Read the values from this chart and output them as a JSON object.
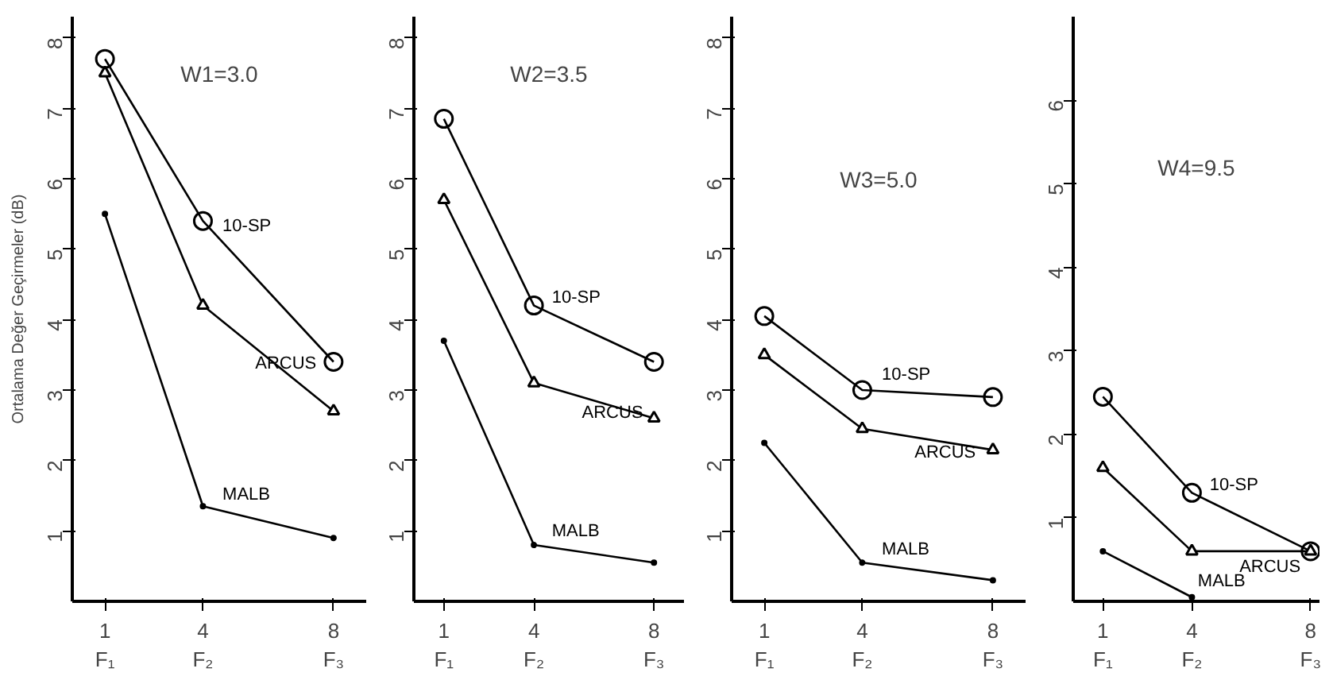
{
  "chart_data": [
    {
      "type": "line",
      "title": "W1=3.0",
      "ylabel": "Ortalama Değer Geçirmeler (dB)",
      "x": [
        1,
        4,
        8
      ],
      "xlim": [
        0,
        9
      ],
      "ylim": [
        0,
        8.3
      ],
      "yticks": [
        1,
        2,
        3,
        4,
        5,
        6,
        7,
        8
      ],
      "xticks": [
        {
          "value": 1,
          "label": "1\nF₁"
        },
        {
          "value": 4,
          "label": "4\nF₂"
        },
        {
          "value": 8,
          "label": "8\nF₃"
        }
      ],
      "grid": false,
      "series": [
        {
          "name": "10-SP",
          "color": "#000000",
          "marker": "circle",
          "values": [
            7.7,
            5.4,
            3.4
          ]
        },
        {
          "name": "ARCUS",
          "color": "#000000",
          "marker": "triangle",
          "values": [
            7.5,
            4.2,
            2.7
          ]
        },
        {
          "name": "MALB",
          "color": "#000000",
          "marker": "dot",
          "values": [
            5.5,
            1.35,
            0.9
          ]
        }
      ]
    },
    {
      "type": "line",
      "title": "W2=3.5",
      "x": [
        1,
        4,
        8
      ],
      "xlim": [
        0,
        9
      ],
      "ylim": [
        0,
        8.3
      ],
      "yticks": [
        1,
        2,
        3,
        4,
        5,
        6,
        7,
        8
      ],
      "xticks": [
        {
          "value": 1,
          "label": "1\nF₁"
        },
        {
          "value": 4,
          "label": "4\nF₂"
        },
        {
          "value": 8,
          "label": "8\nF₃"
        }
      ],
      "grid": false,
      "series": [
        {
          "name": "10-SP",
          "color": "#000000",
          "marker": "circle",
          "values": [
            6.85,
            4.2,
            3.4
          ]
        },
        {
          "name": "ARCUS",
          "color": "#000000",
          "marker": "triangle",
          "values": [
            5.7,
            3.1,
            2.6
          ]
        },
        {
          "name": "MALB",
          "color": "#000000",
          "marker": "dot",
          "values": [
            3.7,
            0.8,
            0.55
          ]
        }
      ]
    },
    {
      "type": "line",
      "title": "W3=5.0",
      "x": [
        1,
        4,
        8
      ],
      "xlim": [
        0,
        9
      ],
      "ylim": [
        0,
        8.3
      ],
      "yticks": [
        1,
        2,
        3,
        4,
        5,
        6,
        7,
        8
      ],
      "xticks": [
        {
          "value": 1,
          "label": "1\nF₁"
        },
        {
          "value": 4,
          "label": "4\nF₂"
        },
        {
          "value": 8,
          "label": "8\nF₃"
        }
      ],
      "grid": false,
      "series": [
        {
          "name": "10-SP",
          "color": "#000000",
          "marker": "circle",
          "values": [
            4.05,
            3.0,
            2.9
          ]
        },
        {
          "name": "ARCUS",
          "color": "#000000",
          "marker": "triangle",
          "values": [
            3.5,
            2.45,
            2.15
          ]
        },
        {
          "name": "MALB",
          "color": "#000000",
          "marker": "dot",
          "values": [
            2.25,
            0.55,
            0.3
          ]
        }
      ]
    },
    {
      "type": "line",
      "title": "W4=9.5",
      "x": [
        1,
        4,
        8
      ],
      "xlim": [
        0,
        8.3
      ],
      "ylim": [
        0,
        7
      ],
      "yticks": [
        1,
        2,
        3,
        4,
        5,
        6
      ],
      "xticks": [
        {
          "value": 1,
          "label": "1\nF₁"
        },
        {
          "value": 4,
          "label": "4\nF₂"
        },
        {
          "value": 8,
          "label": "8\nF₃"
        }
      ],
      "grid": false,
      "series": [
        {
          "name": "10-SP",
          "color": "#000000",
          "marker": "circle",
          "values": [
            2.45,
            1.3,
            0.6
          ]
        },
        {
          "name": "ARCUS",
          "color": "#000000",
          "marker": "triangle",
          "values": [
            1.6,
            0.6,
            0.6
          ]
        },
        {
          "name": "MALB",
          "color": "#000000",
          "marker": "dot",
          "values": [
            0.6,
            0.05,
            null
          ]
        }
      ]
    }
  ]
}
